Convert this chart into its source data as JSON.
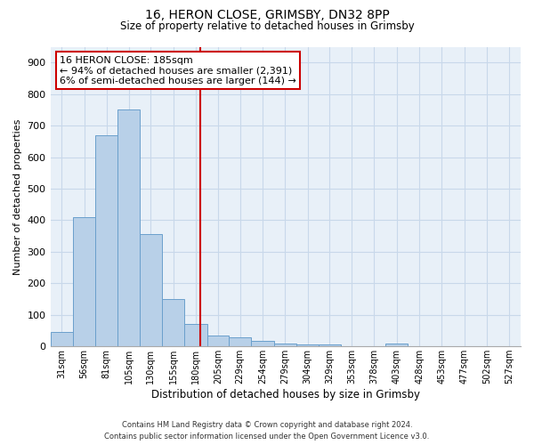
{
  "title1": "16, HERON CLOSE, GRIMSBY, DN32 8PP",
  "title2": "Size of property relative to detached houses in Grimsby",
  "xlabel": "Distribution of detached houses by size in Grimsby",
  "ylabel": "Number of detached properties",
  "footnote1": "Contains HM Land Registry data © Crown copyright and database right 2024.",
  "footnote2": "Contains public sector information licensed under the Open Government Licence v3.0.",
  "bar_labels": [
    "31sqm",
    "56sqm",
    "81sqm",
    "105sqm",
    "130sqm",
    "155sqm",
    "180sqm",
    "205sqm",
    "229sqm",
    "254sqm",
    "279sqm",
    "304sqm",
    "329sqm",
    "353sqm",
    "378sqm",
    "403sqm",
    "428sqm",
    "453sqm",
    "477sqm",
    "502sqm",
    "527sqm"
  ],
  "bar_values": [
    47,
    410,
    670,
    750,
    355,
    150,
    70,
    35,
    28,
    18,
    10,
    7,
    5,
    0,
    0,
    10,
    0,
    0,
    0,
    0,
    0
  ],
  "bar_color": "#b8d0e8",
  "bar_edge_color": "#6aa0cc",
  "property_line_x": 185,
  "annotation_title": "16 HERON CLOSE: 185sqm",
  "annotation_line1": "← 94% of detached houses are smaller (2,391)",
  "annotation_line2": "6% of semi-detached houses are larger (144) →",
  "annotation_box_color": "#ffffff",
  "annotation_box_edge": "#cc0000",
  "vline_color": "#cc0000",
  "ylim": [
    0,
    950
  ],
  "yticks": [
    0,
    100,
    200,
    300,
    400,
    500,
    600,
    700,
    800,
    900
  ],
  "grid_color": "#c8d8ea",
  "bins": [
    18.5,
    43.5,
    68.5,
    93.5,
    117.5,
    142.5,
    167.5,
    192.5,
    216.5,
    241.5,
    266.5,
    291.5,
    316.5,
    340.5,
    365.5,
    390.5,
    415.5,
    440.5,
    465.5,
    490.5,
    515.5,
    540.5
  ],
  "axes_bg": "#e8f0f8"
}
